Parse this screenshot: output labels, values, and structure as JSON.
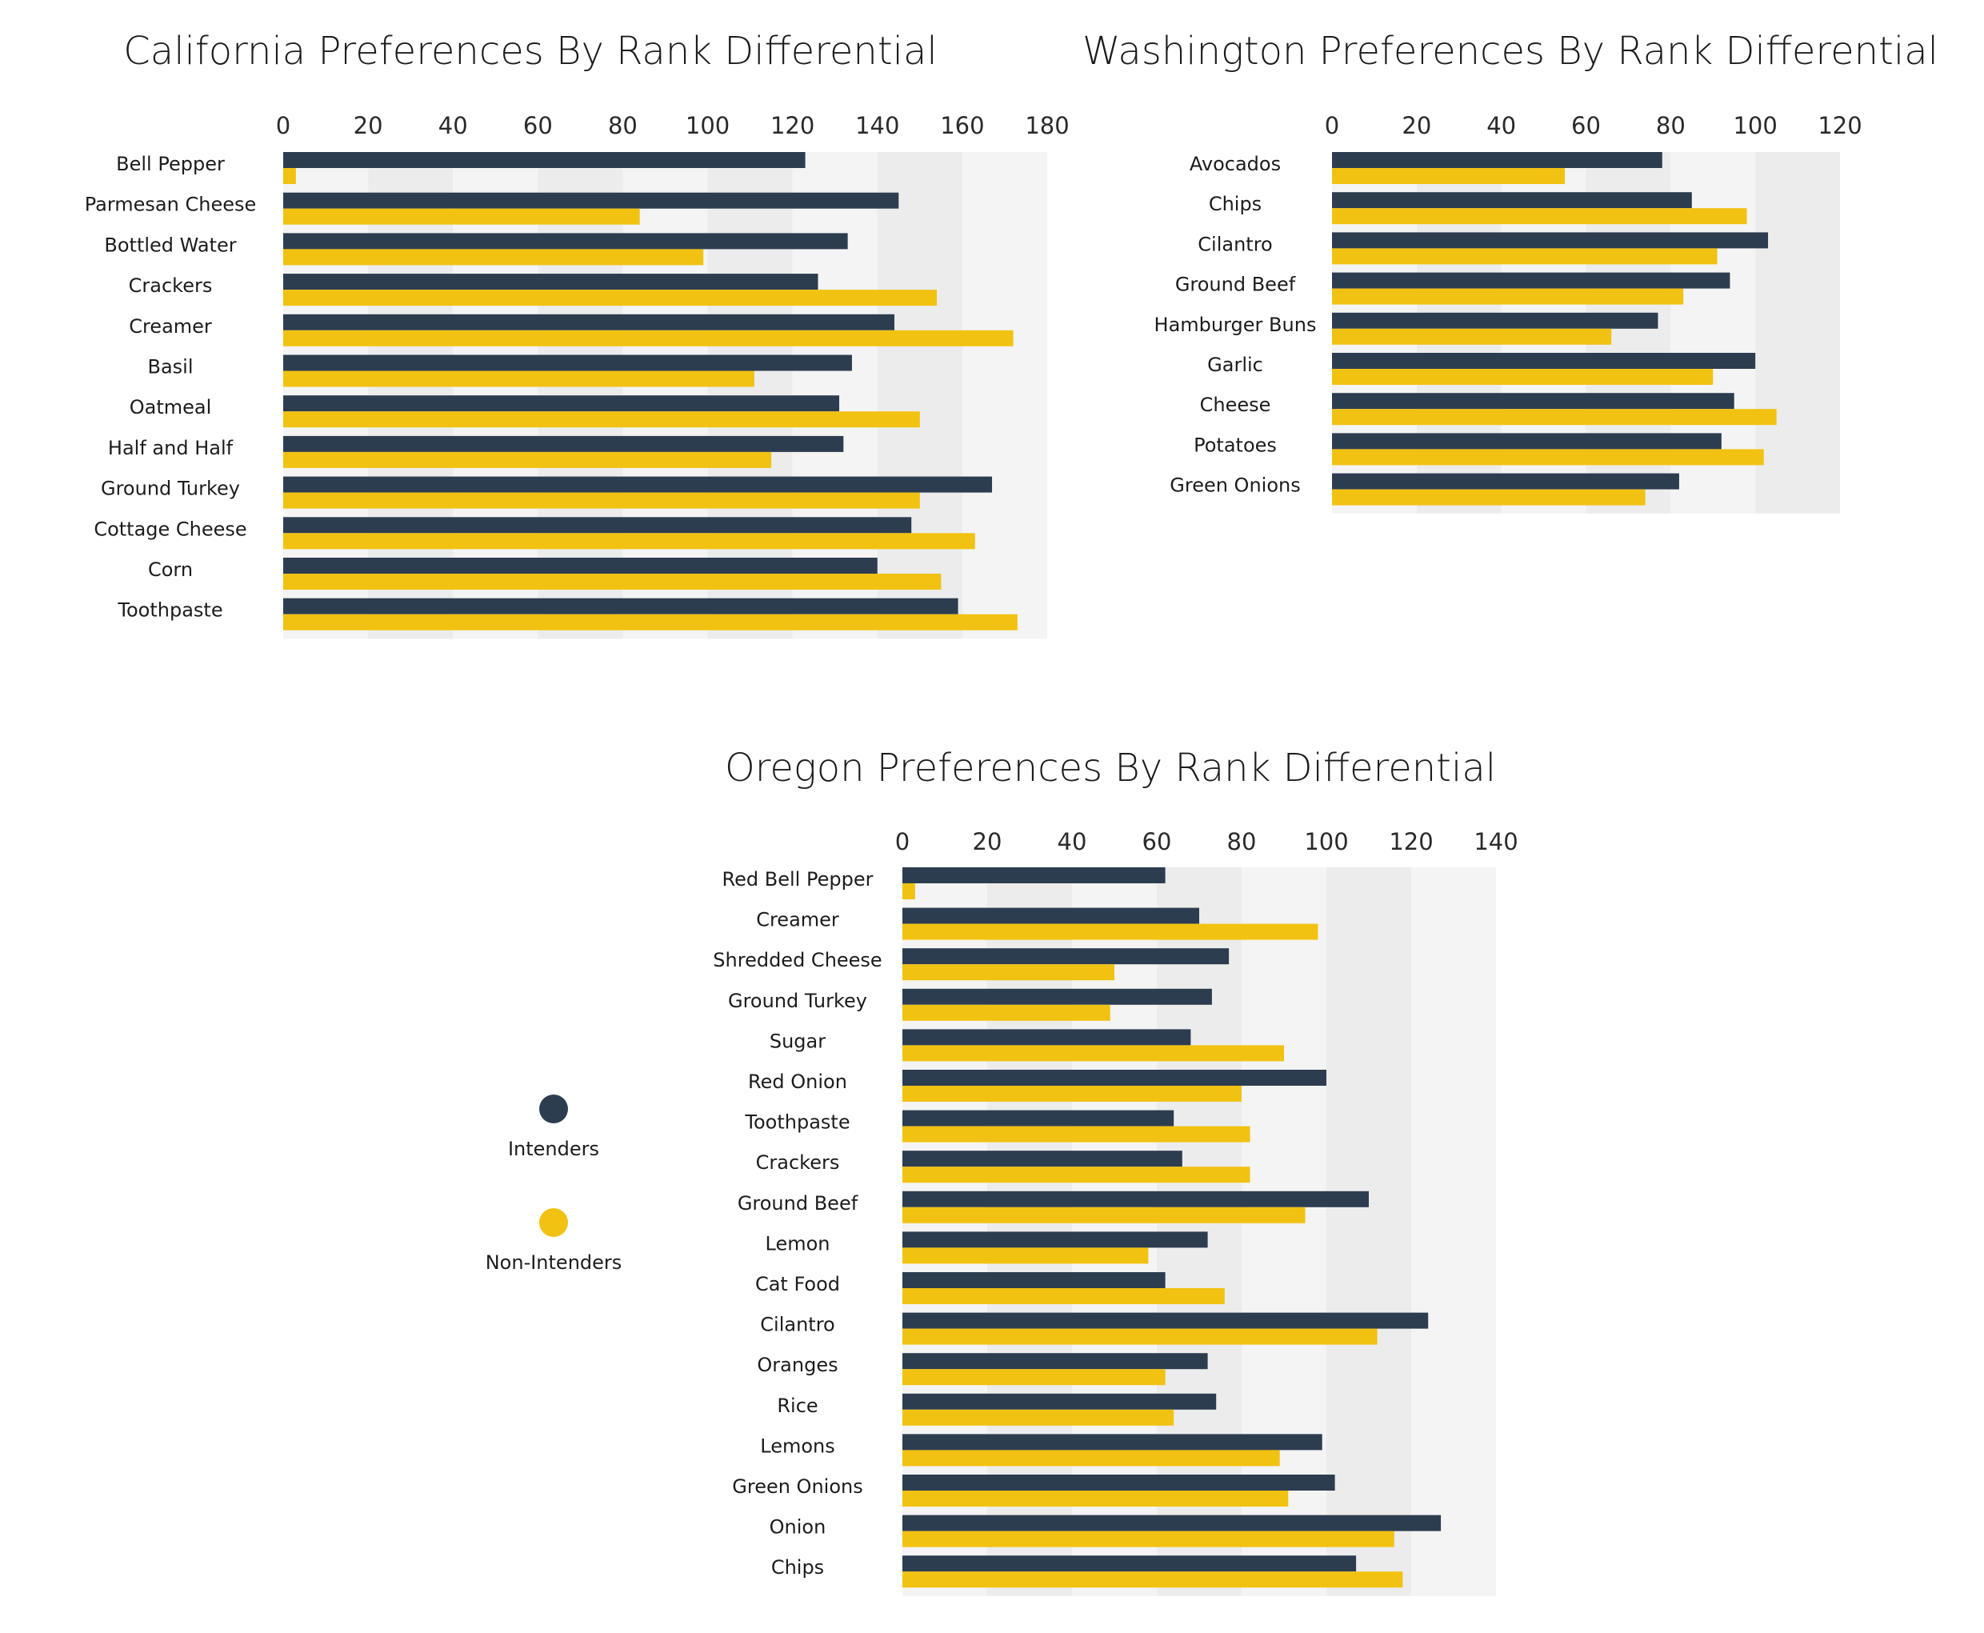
{
  "colors": {
    "intenders": "#2d3d50",
    "non_intenders": "#f2c212",
    "band_light": "#f4f4f4",
    "band_dark": "#ececec"
  },
  "legend": {
    "items": [
      {
        "label": "Intenders",
        "color": "#2d3d50"
      },
      {
        "label": "Non-Intenders",
        "color": "#f2c212"
      }
    ]
  },
  "chart_data": [
    {
      "type": "bar",
      "orientation": "horizontal",
      "title": "California Preferences By Rank Differential",
      "xlim": [
        0,
        180
      ],
      "ticks": [
        0,
        20,
        40,
        60,
        80,
        100,
        120,
        140,
        160,
        180
      ],
      "categories": [
        "Bell Pepper",
        "Parmesan Cheese",
        "Bottled Water",
        "Crackers",
        "Creamer",
        "Basil",
        "Oatmeal",
        "Half and Half",
        "Ground Turkey",
        "Cottage Cheese",
        "Corn",
        "Toothpaste"
      ],
      "series": [
        {
          "name": "Intenders",
          "values": [
            123,
            145,
            133,
            126,
            144,
            134,
            131,
            132,
            167,
            148,
            140,
            159
          ]
        },
        {
          "name": "Non-Intenders",
          "values": [
            3,
            84,
            99,
            154,
            172,
            111,
            150,
            115,
            150,
            163,
            155,
            173
          ]
        }
      ]
    },
    {
      "type": "bar",
      "orientation": "horizontal",
      "title": "Washington Preferences By Rank Differential",
      "xlim": [
        0,
        120
      ],
      "ticks": [
        0,
        20,
        40,
        60,
        80,
        100,
        120
      ],
      "categories": [
        "Avocados",
        "Chips",
        "Cilantro",
        "Ground Beef",
        "Hamburger Buns",
        "Garlic",
        "Cheese",
        "Potatoes",
        "Green Onions"
      ],
      "series": [
        {
          "name": "Intenders",
          "values": [
            78,
            85,
            103,
            94,
            77,
            100,
            95,
            92,
            82
          ]
        },
        {
          "name": "Non-Intenders",
          "values": [
            55,
            98,
            91,
            83,
            66,
            90,
            105,
            102,
            74
          ]
        }
      ]
    },
    {
      "type": "bar",
      "orientation": "horizontal",
      "title": "Oregon Preferences By Rank Differential",
      "xlim": [
        0,
        140
      ],
      "ticks": [
        0,
        20,
        40,
        60,
        80,
        100,
        120,
        140
      ],
      "categories": [
        "Red Bell Pepper",
        "Creamer",
        "Shredded Cheese",
        "Ground Turkey",
        "Sugar",
        "Red Onion",
        "Toothpaste",
        "Crackers",
        "Ground Beef",
        "Lemon",
        "Cat Food",
        "Cilantro",
        "Oranges",
        "Rice",
        "Lemons",
        "Green Onions",
        "Onion",
        "Chips"
      ],
      "series": [
        {
          "name": "Intenders",
          "values": [
            62,
            70,
            77,
            73,
            68,
            100,
            64,
            66,
            110,
            72,
            62,
            124,
            72,
            74,
            99,
            102,
            127,
            107
          ]
        },
        {
          "name": "Non-Intenders",
          "values": [
            3,
            98,
            50,
            49,
            90,
            80,
            82,
            82,
            95,
            58,
            76,
            112,
            62,
            64,
            89,
            91,
            116,
            118
          ]
        }
      ]
    }
  ]
}
